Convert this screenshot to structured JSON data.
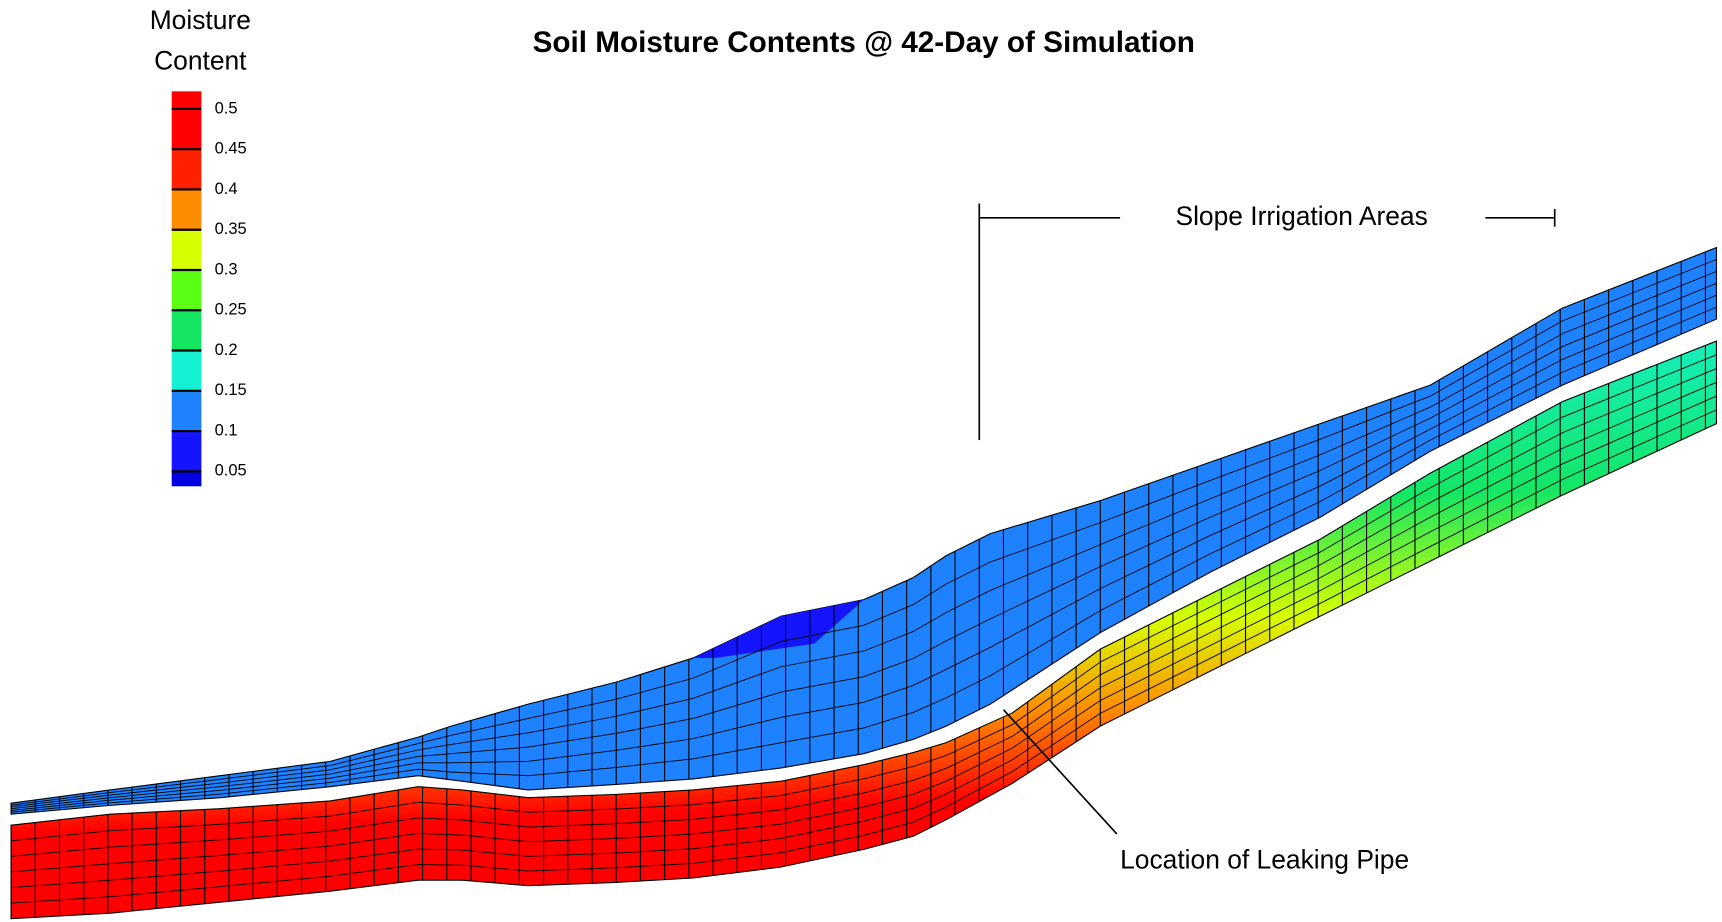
{
  "title": "Soil Moisture Contents @ 42-Day of Simulation",
  "legend": {
    "title_lines": [
      "Moisture",
      "Content"
    ],
    "levels": [
      0.5,
      0.45,
      0.4,
      0.35,
      0.3,
      0.25,
      0.2,
      0.15,
      0.1,
      0.05
    ],
    "colors": [
      "#ff0000",
      "#ff0000",
      "#ff2000",
      "#ff8c00",
      "#d8ff00",
      "#5aff14",
      "#14e664",
      "#14f0d2",
      "#1e82ff",
      "#1414ff",
      "#0000e0"
    ]
  },
  "annotations": {
    "irrigation": "Slope Irrigation Areas",
    "pipe": "Location of Leaking Pipe"
  }
}
